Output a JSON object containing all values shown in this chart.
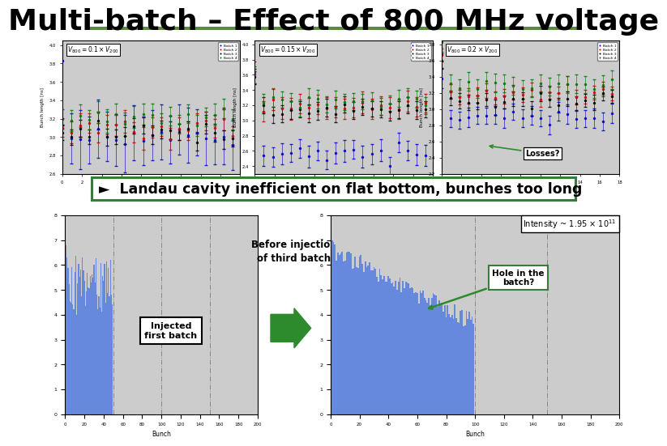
{
  "title": "Multi-batch – Effect of 800 MHz voltage",
  "title_fontsize": 26,
  "title_fontweight": "bold",
  "bg_color": "#ffffff",
  "green_line_color": "#5a8a3c",
  "panel_bg": "#cccccc",
  "bullet_text": "►  Landau cavity inefficient on flat bottom, bunches too long",
  "bullet_fontsize": 12.5,
  "bullet_fontweight": "bold",
  "bullet_bg": "#ffffff",
  "bullet_border": "#3a7a3a",
  "losses_text": "Losses?",
  "inj_first_text": "Injected\nfirst batch",
  "before_inj_text": "Before injection\nof third batch",
  "intensity_text": "Intensity ~ 1.95 × 10$^{11}$",
  "hole_text": "Hole in the\nbatch?",
  "batch_colors": [
    "#0000cc",
    "#cc0000",
    "#000000",
    "#007700"
  ],
  "arrow_color": "#2d8a2d",
  "bar_color": "#6688dd",
  "subplot_formulas": [
    "0.1",
    "0.15",
    "0.2"
  ]
}
